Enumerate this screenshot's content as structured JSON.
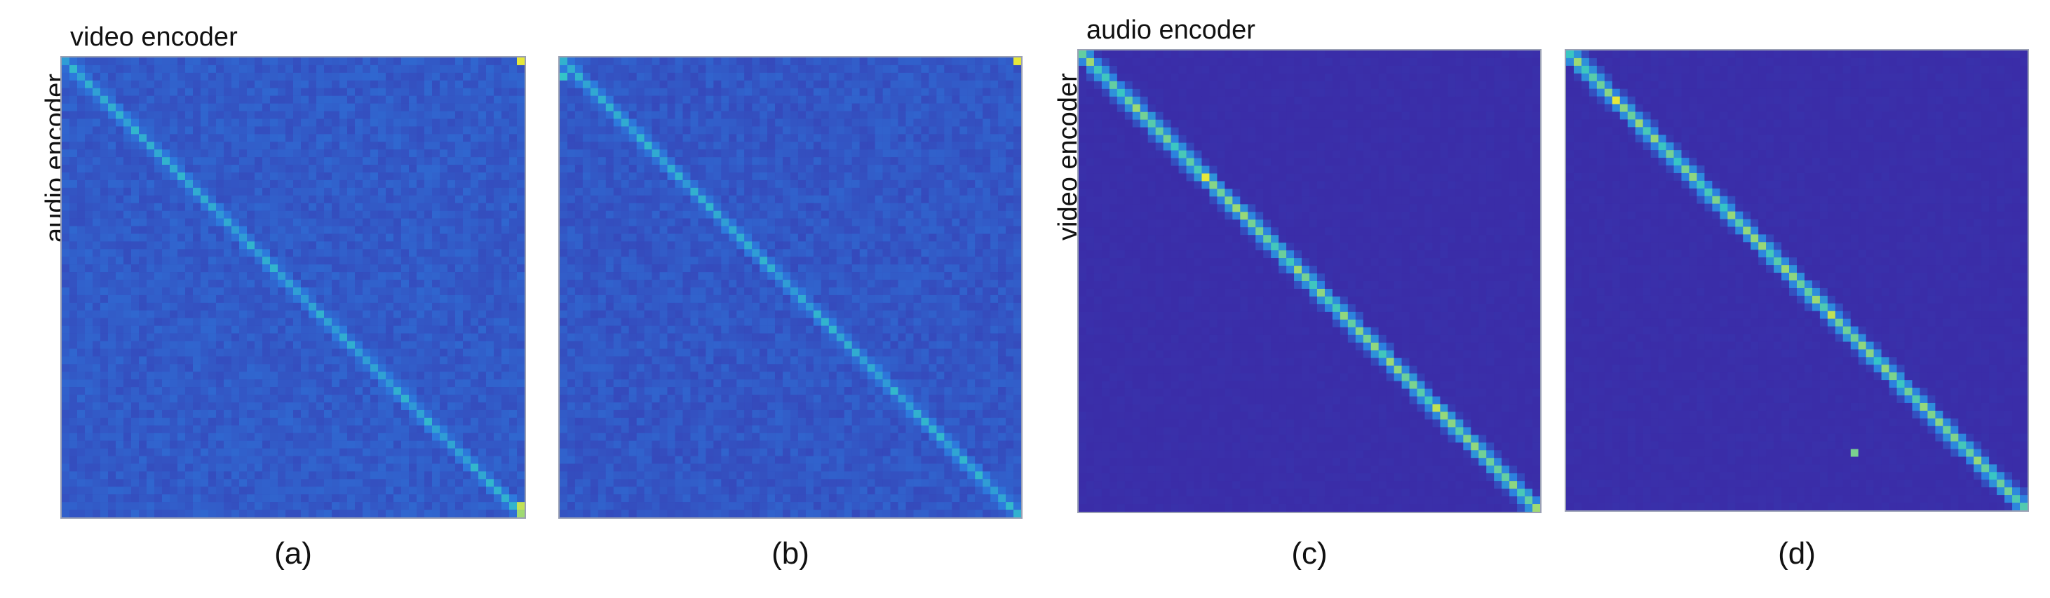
{
  "labels": {
    "top_left": "video encoder",
    "left_vertical": "audio encoder",
    "top_right": "audio encoder",
    "right_vertical": "video encoder"
  },
  "captions": [
    "(a)",
    "(b)",
    "(c)",
    "(d)"
  ],
  "colors": {
    "low": "#3a2da8",
    "mid": "#2c7fe0",
    "diag": "#34c4c8",
    "high": "#e6e83a"
  },
  "chart_data": [
    {
      "type": "heatmap",
      "title": "(a)",
      "xlabel": "video encoder",
      "ylabel": "audio encoder",
      "size": 60,
      "diagonal_strength": 0.55,
      "background_level": 0.22,
      "background_noise": 0.14,
      "hotspots": [
        {
          "row": 0,
          "col": 59,
          "value": 1.0
        },
        {
          "row": 58,
          "col": 59,
          "value": 0.95
        },
        {
          "row": 59,
          "col": 59,
          "value": 0.9
        },
        {
          "row": 1,
          "col": 1,
          "value": 0.7
        }
      ]
    },
    {
      "type": "heatmap",
      "title": "(b)",
      "xlabel": "video encoder",
      "ylabel": "audio encoder",
      "size": 60,
      "diagonal_strength": 0.55,
      "background_level": 0.2,
      "background_noise": 0.14,
      "hotspots": [
        {
          "row": 0,
          "col": 59,
          "value": 1.0
        },
        {
          "row": 2,
          "col": 0,
          "value": 0.75
        },
        {
          "row": 58,
          "col": 58,
          "value": 0.7
        }
      ]
    },
    {
      "type": "heatmap",
      "title": "(c)",
      "xlabel": "audio encoder",
      "ylabel": "video encoder",
      "size": 60,
      "diagonal_strength": 0.75,
      "background_level": 0.0,
      "background_noise": 0.03,
      "hotspots": [
        {
          "row": 16,
          "col": 16,
          "value": 1.0
        },
        {
          "row": 46,
          "col": 46,
          "value": 0.95
        },
        {
          "row": 28,
          "col": 28,
          "value": 0.9
        },
        {
          "row": 59,
          "col": 59,
          "value": 0.9
        }
      ]
    },
    {
      "type": "heatmap",
      "title": "(d)",
      "xlabel": "audio encoder",
      "ylabel": "video encoder",
      "size": 60,
      "diagonal_strength": 0.75,
      "background_level": 0.0,
      "background_noise": 0.03,
      "hotspots": [
        {
          "row": 6,
          "col": 6,
          "value": 1.0
        },
        {
          "row": 34,
          "col": 34,
          "value": 0.95
        },
        {
          "row": 52,
          "col": 37,
          "value": 0.85
        },
        {
          "row": 22,
          "col": 22,
          "value": 0.8
        }
      ]
    }
  ]
}
